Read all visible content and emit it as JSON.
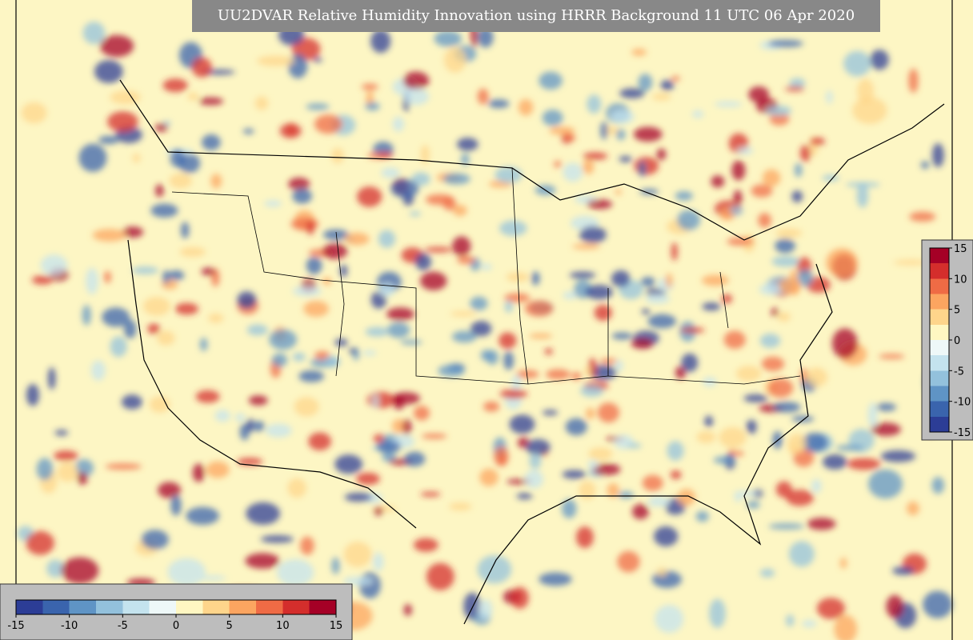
{
  "title": "UU2DVAR Relative Humidity Innovation using HRRR Background 11 UTC 06 Apr 2020",
  "background": "#fdf6c4",
  "colorbar_horizontal": {
    "range": [
      -15,
      15
    ],
    "ticks": [
      -15,
      -10,
      -5,
      0,
      5,
      10,
      15
    ],
    "colors": [
      "#2c3d96",
      "#3a64ad",
      "#5f94c5",
      "#93c1dc",
      "#c4e3ee",
      "#eef8f8",
      "#fff7c2",
      "#fed58b",
      "#fca560",
      "#ef6b45",
      "#d42e2c",
      "#a50026"
    ]
  },
  "colorbar_vertical": {
    "range": [
      -15,
      15
    ],
    "ticks": [
      -15,
      -10,
      -5,
      0,
      5,
      10,
      15
    ],
    "colors": [
      "#2c3d96",
      "#3a64ad",
      "#5f94c5",
      "#93c1dc",
      "#c4e3ee",
      "#eef8f8",
      "#fff7c2",
      "#fed58b",
      "#fca560",
      "#ef6b45",
      "#d42e2c",
      "#a50026"
    ]
  }
}
